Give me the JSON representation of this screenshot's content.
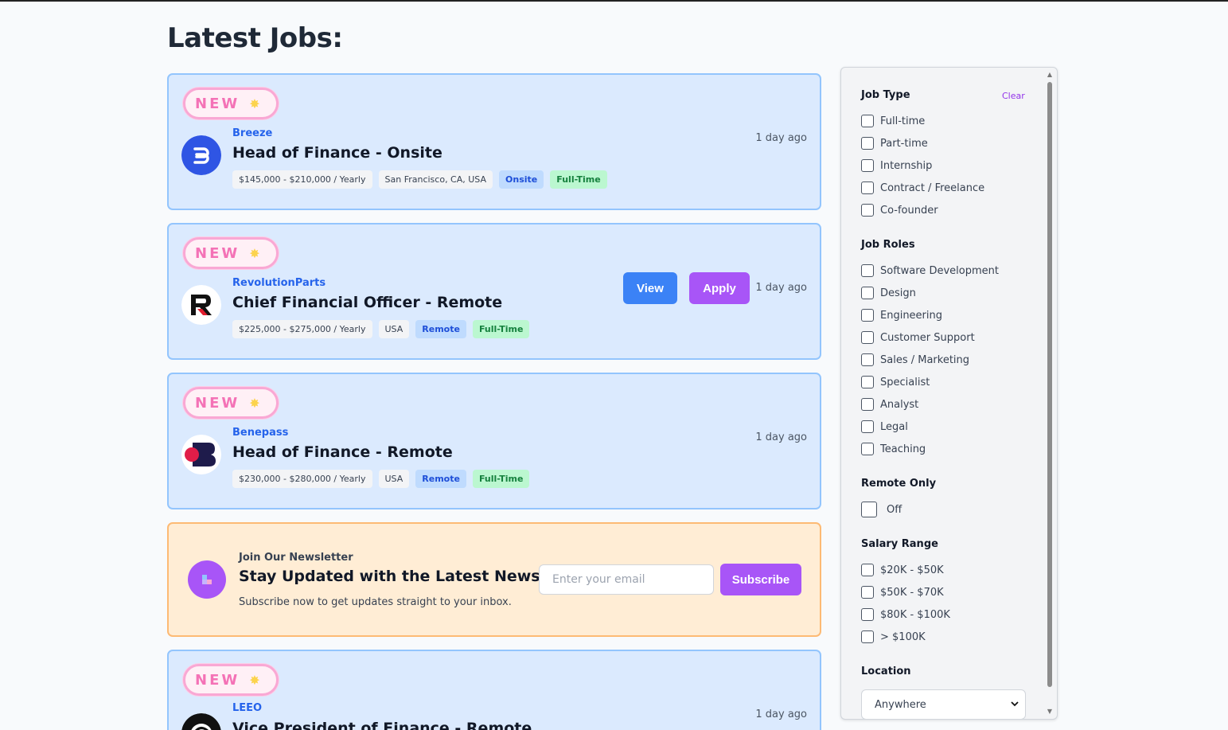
{
  "page": {
    "title": "Latest Jobs:"
  },
  "jobs": [
    {
      "badge": "NEW",
      "company": "Breeze",
      "title": "Head of Finance - Onsite",
      "salary": "$145,000 - $210,000 / Yearly",
      "location": "San Francisco, CA, USA",
      "mode": "Onsite",
      "type": "Full-Time",
      "posted": "1 day ago",
      "logo_icon": "breeze-logo-icon"
    },
    {
      "badge": "NEW",
      "company": "RevolutionParts",
      "title": "Chief Financial Officer - Remote",
      "salary": "$225,000 - $275,000 / Yearly",
      "location": "USA",
      "mode": "Remote",
      "type": "Full-Time",
      "posted": "1 day ago",
      "view_label": "View",
      "apply_label": "Apply",
      "logo_icon": "revolutionparts-logo-icon"
    },
    {
      "badge": "NEW",
      "company": "Benepass",
      "title": "Head of Finance - Remote",
      "salary": "$230,000 - $280,000 / Yearly",
      "location": "USA",
      "mode": "Remote",
      "type": "Full-Time",
      "posted": "1 day ago",
      "logo_icon": "benepass-logo-icon"
    },
    {
      "badge": "NEW",
      "company": "LEEO",
      "title": "Vice President of Finance - Remote",
      "posted": "1 day ago",
      "logo_icon": "leeo-logo-icon"
    }
  ],
  "newsletter": {
    "eyebrow": "Join Our Newsletter",
    "title": "Stay Updated with the Latest News",
    "description": "Subscribe now to get updates straight to your inbox.",
    "email_placeholder": "Enter your email",
    "subscribe_label": "Subscribe",
    "icon": "newsletter-icon"
  },
  "filters": {
    "clear_label": "Clear",
    "job_type": {
      "title": "Job Type",
      "options": [
        "Full-time",
        "Part-time",
        "Internship",
        "Contract / Freelance",
        "Co-founder"
      ]
    },
    "job_roles": {
      "title": "Job Roles",
      "options": [
        "Software Development",
        "Design",
        "Engineering",
        "Customer Support",
        "Sales / Marketing",
        "Specialist",
        "Analyst",
        "Legal",
        "Teaching"
      ]
    },
    "remote_only": {
      "title": "Remote Only",
      "label": "Off"
    },
    "salary_range": {
      "title": "Salary Range",
      "options": [
        "$20K - $50K",
        "$50K - $70K",
        "$80K - $100K",
        "> $100K"
      ]
    },
    "location": {
      "title": "Location",
      "selected": "Anywhere"
    }
  },
  "colors": {
    "accent_purple": "#a855f7",
    "accent_blue": "#3b82f6",
    "card_bg": "#dbeafe",
    "newsletter_bg": "#ffedd5"
  }
}
